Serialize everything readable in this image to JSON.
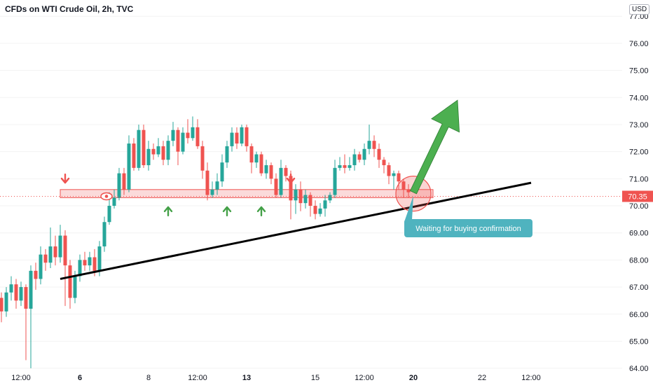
{
  "header": {
    "title": "CFDs on WTI Crude Oil, 2h, TVC",
    "currency": "USD"
  },
  "colors": {
    "up": "#26a69a",
    "down": "#ef5350",
    "upArrow": "#43a047",
    "trend": "#000000",
    "zone": "#f8bbbb",
    "callout": "#4fb3bf",
    "priceTag": "#ef5350",
    "bigArrow": "#4caf50"
  },
  "chart_data": {
    "type": "candlestick",
    "title": "CFDs on WTI Crude Oil, 2h, TVC",
    "ylim": [
      63.9,
      77.6
    ],
    "y_ticks": [
      64,
      65,
      66,
      67,
      68,
      69,
      70,
      71,
      72,
      73,
      74,
      75,
      76,
      77
    ],
    "y_tick_labels": [
      "64.00",
      "65.00",
      "66.00",
      "67.00",
      "68.00",
      "69.00",
      "70.00",
      "71.00",
      "72.00",
      "73.00",
      "74.00",
      "75.00",
      "76.00",
      "77.00"
    ],
    "x_ticks": [
      {
        "label": "12:00",
        "bold": false,
        "i": 4
      },
      {
        "label": "6",
        "bold": true,
        "i": 16
      },
      {
        "label": "8",
        "bold": false,
        "i": 30
      },
      {
        "label": "12:00",
        "bold": false,
        "i": 40
      },
      {
        "label": "13",
        "bold": true,
        "i": 50
      },
      {
        "label": "15",
        "bold": false,
        "i": 64
      },
      {
        "label": "12:00",
        "bold": false,
        "i": 74
      },
      {
        "label": "20",
        "bold": true,
        "i": 84
      },
      {
        "label": "22",
        "bold": false,
        "i": 98
      },
      {
        "label": "12:00",
        "bold": false,
        "i": 108
      }
    ],
    "current_price": "70.35",
    "current_value": 70.35,
    "candles": [
      [
        66.6,
        66.1,
        66.8,
        65.7
      ],
      [
        66.1,
        66.8,
        67.0,
        65.9
      ],
      [
        66.8,
        67.1,
        67.4,
        66.5
      ],
      [
        67.1,
        66.5,
        67.3,
        66.2
      ],
      [
        66.5,
        67.0,
        67.2,
        66.3
      ],
      [
        67.0,
        66.2,
        67.1,
        64.3
      ],
      [
        66.2,
        67.6,
        67.8,
        64.0
      ],
      [
        67.6,
        67.3,
        67.9,
        66.9
      ],
      [
        67.3,
        68.2,
        68.5,
        67.1
      ],
      [
        68.2,
        67.9,
        68.4,
        67.6
      ],
      [
        67.9,
        68.5,
        69.2,
        67.7
      ],
      [
        68.5,
        68.1,
        68.9,
        67.8
      ],
      [
        68.1,
        68.9,
        69.3,
        67.9
      ],
      [
        68.9,
        67.8,
        69.1,
        66.3
      ],
      [
        67.8,
        66.6,
        68.0,
        66.2
      ],
      [
        66.6,
        67.4,
        67.6,
        66.4
      ],
      [
        67.4,
        68.0,
        68.2,
        67.2
      ],
      [
        68.0,
        67.8,
        68.3,
        67.6
      ],
      [
        67.8,
        68.1,
        68.3,
        67.6
      ],
      [
        68.1,
        67.6,
        68.4,
        67.4
      ],
      [
        67.6,
        68.5,
        68.7,
        67.4
      ],
      [
        68.5,
        69.4,
        69.6,
        68.3
      ],
      [
        69.4,
        70.0,
        70.5,
        69.3
      ],
      [
        70.0,
        70.3,
        70.6,
        69.9
      ],
      [
        70.3,
        71.2,
        71.4,
        70.2
      ],
      [
        71.2,
        70.6,
        71.4,
        70.4
      ],
      [
        70.6,
        72.3,
        72.6,
        70.5
      ],
      [
        72.3,
        71.4,
        72.5,
        71.3
      ],
      [
        71.4,
        72.8,
        73.0,
        71.3
      ],
      [
        72.8,
        71.5,
        73.0,
        71.4
      ],
      [
        71.5,
        72.1,
        72.4,
        71.3
      ],
      [
        72.1,
        71.9,
        72.3,
        71.7
      ],
      [
        71.9,
        72.2,
        72.5,
        71.8
      ],
      [
        72.2,
        71.7,
        72.4,
        71.5
      ],
      [
        71.7,
        72.4,
        72.6,
        71.5
      ],
      [
        72.4,
        72.8,
        73.1,
        72.2
      ],
      [
        72.8,
        72.0,
        72.9,
        71.5
      ],
      [
        72.0,
        72.7,
        72.9,
        71.9
      ],
      [
        72.7,
        72.5,
        73.2,
        72.3
      ],
      [
        72.5,
        72.9,
        73.3,
        72.4
      ],
      [
        72.9,
        72.2,
        73.2,
        72.1
      ],
      [
        72.2,
        71.3,
        72.4,
        71.0
      ],
      [
        71.3,
        70.4,
        71.6,
        70.2
      ],
      [
        70.4,
        70.6,
        70.9,
        70.3
      ],
      [
        70.6,
        70.9,
        71.2,
        70.4
      ],
      [
        70.9,
        71.6,
        71.9,
        70.7
      ],
      [
        71.6,
        72.2,
        72.4,
        71.4
      ],
      [
        72.2,
        72.7,
        72.9,
        72.0
      ],
      [
        72.7,
        72.3,
        72.9,
        72.1
      ],
      [
        72.3,
        72.9,
        73.0,
        72.2
      ],
      [
        72.9,
        72.2,
        73.0,
        72.0
      ],
      [
        72.2,
        71.6,
        72.3,
        71.2
      ],
      [
        71.6,
        71.9,
        72.0,
        71.4
      ],
      [
        71.9,
        71.2,
        72.0,
        71.1
      ],
      [
        71.2,
        71.5,
        71.7,
        71.0
      ],
      [
        71.5,
        71.0,
        71.6,
        70.8
      ],
      [
        71.0,
        70.4,
        71.2,
        70.3
      ],
      [
        70.4,
        71.4,
        71.7,
        70.3
      ],
      [
        71.4,
        71.1,
        71.5,
        70.9
      ],
      [
        71.1,
        70.2,
        71.3,
        69.5
      ],
      [
        70.2,
        70.6,
        70.8,
        69.7
      ],
      [
        70.6,
        70.1,
        70.9,
        69.8
      ],
      [
        70.1,
        70.4,
        70.6,
        69.9
      ],
      [
        70.4,
        70.0,
        70.5,
        69.6
      ],
      [
        70.0,
        69.7,
        70.2,
        69.5
      ],
      [
        69.7,
        69.9,
        70.1,
        69.6
      ],
      [
        69.9,
        70.2,
        70.4,
        69.6
      ],
      [
        70.2,
        70.4,
        70.5,
        70.1
      ],
      [
        70.4,
        71.4,
        71.7,
        70.3
      ],
      [
        71.4,
        71.5,
        71.8,
        71.3
      ],
      [
        71.5,
        71.4,
        71.9,
        71.2
      ],
      [
        71.4,
        71.5,
        71.8,
        71.3
      ],
      [
        71.5,
        71.9,
        72.1,
        71.3
      ],
      [
        71.9,
        71.7,
        72.0,
        71.6
      ],
      [
        71.7,
        72.1,
        72.3,
        71.5
      ],
      [
        72.1,
        72.4,
        73.0,
        71.9
      ],
      [
        72.4,
        72.1,
        72.6,
        71.8
      ],
      [
        72.1,
        71.7,
        72.3,
        71.4
      ],
      [
        71.7,
        71.5,
        71.8,
        71.2
      ],
      [
        71.5,
        71.1,
        71.6,
        70.8
      ],
      [
        71.1,
        71.2,
        71.3,
        70.6
      ],
      [
        71.2,
        70.9,
        71.3,
        70.6
      ],
      [
        70.9,
        70.6,
        71.0,
        70.3
      ],
      [
        70.6,
        70.5,
        70.8,
        70.3
      ]
    ]
  },
  "annotations": {
    "callout_text": "Waiting for buying confirmation",
    "trendline": {
      "from": {
        "i": 12,
        "v": 67.3
      },
      "to": {
        "i": 108,
        "v": 70.85
      }
    },
    "zone": {
      "from_i": 12,
      "to_i": 88,
      "low": 70.3,
      "high": 70.6
    },
    "circle": {
      "i": 84,
      "v": 70.45
    },
    "down_arrows": [
      {
        "i": 13,
        "v": 70.8
      },
      {
        "i": 59,
        "v": 70.8
      }
    ],
    "up_arrows": [
      {
        "i": 34,
        "v": 69.9
      },
      {
        "i": 46,
        "v": 69.9
      },
      {
        "i": 53,
        "v": 69.9
      }
    ],
    "big_arrow": {
      "from": {
        "i": 84,
        "v": 70.5
      },
      "to": {
        "i": 93,
        "v": 73.9
      }
    }
  }
}
